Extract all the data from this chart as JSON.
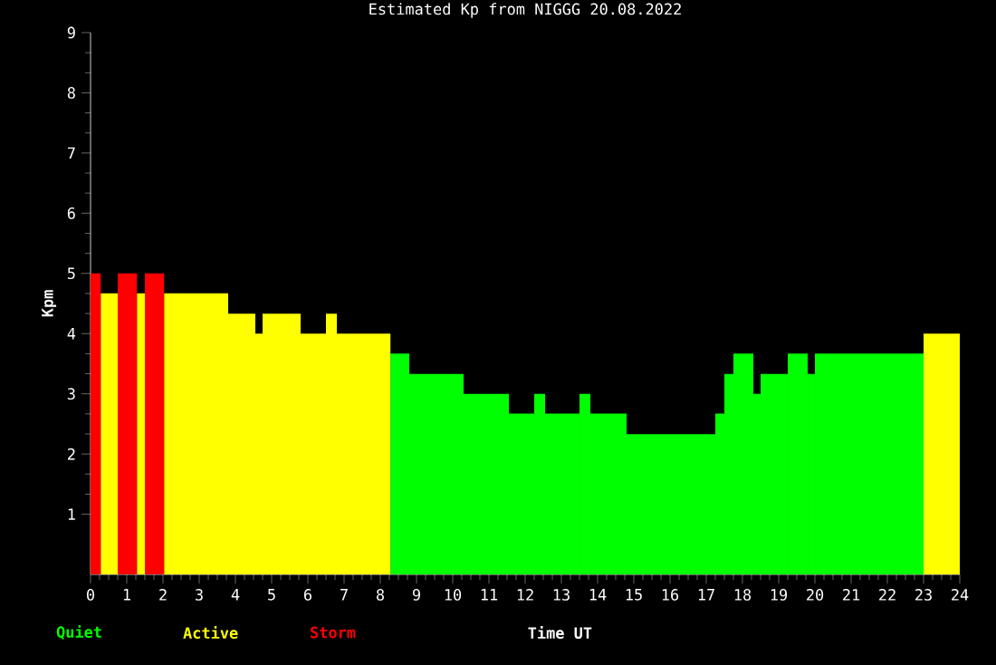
{
  "chart_data": {
    "type": "histogram",
    "title": "Estimated Kp from NIGGG 20.08.2022",
    "xlabel": "Time UT",
    "ylabel": "Kpm",
    "bins": [
      0,
      0.28,
      0.75,
      1.28,
      1.5,
      2.03,
      3.8,
      4.55,
      4.75,
      5.8,
      6.5,
      6.8,
      8.28,
      8.8,
      10.3,
      11.55,
      12.25,
      12.55,
      13.5,
      13.8,
      14.8,
      17.25,
      17.5,
      17.75,
      18.3,
      18.5,
      19.25,
      19.8,
      20.0,
      23.0,
      24
    ],
    "series": [
      {
        "name": "Quiet",
        "color": "#00ff00",
        "values": [
          null,
          null,
          null,
          null,
          null,
          null,
          null,
          null,
          null,
          null,
          null,
          null,
          3.67,
          3.33,
          3,
          2.67,
          3,
          2.67,
          3,
          2.67,
          2.33,
          2.67,
          3.33,
          3.67,
          3,
          3.33,
          3.67,
          3.33,
          3.67,
          null
        ]
      },
      {
        "name": "Active",
        "color": "#ffff00",
        "values": [
          null,
          4.67,
          null,
          4.67,
          null,
          4.67,
          4.33,
          4,
          4.33,
          4,
          4.33,
          4,
          null,
          null,
          null,
          null,
          null,
          null,
          null,
          null,
          null,
          null,
          null,
          null,
          null,
          null,
          null,
          null,
          null,
          4
        ]
      },
      {
        "name": "Storm",
        "color": "#ff0000",
        "values": [
          5,
          null,
          5,
          null,
          5,
          null,
          null,
          null,
          null,
          null,
          null,
          null,
          null,
          null,
          null,
          null,
          null,
          null,
          null,
          null,
          null,
          null,
          null,
          null,
          null,
          null,
          null,
          null,
          null,
          null
        ]
      }
    ],
    "xlim": [
      0,
      24
    ],
    "ylim": [
      0,
      9
    ],
    "xticks": [
      0,
      1,
      2,
      3,
      4,
      5,
      6,
      7,
      8,
      9,
      10,
      11,
      12,
      13,
      14,
      15,
      16,
      17,
      18,
      19,
      20,
      21,
      22,
      23,
      24
    ],
    "yticks": [
      1,
      2,
      3,
      4,
      5,
      6,
      7,
      8,
      9
    ],
    "legend": "bottom left"
  }
}
